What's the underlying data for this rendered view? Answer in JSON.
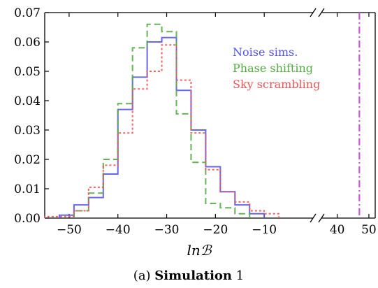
{
  "chart_data": {
    "type": "histogram",
    "xlabel": "lnℬ",
    "caption": {
      "prefix": "(a) ",
      "bold": "Simulation",
      "suffix": " 1"
    },
    "broken_axis": true,
    "x_ticks_left": [
      {
        "value": -50,
        "label": "−50"
      },
      {
        "value": -40,
        "label": "−40"
      },
      {
        "value": -30,
        "label": "−30"
      },
      {
        "value": -20,
        "label": "−20"
      },
      {
        "value": -10,
        "label": "−10"
      }
    ],
    "x_ticks_right": [
      {
        "value": 40,
        "label": "40"
      },
      {
        "value": 50,
        "label": "50"
      }
    ],
    "xlim_left": [
      -55,
      0
    ],
    "xlim_right": [
      35,
      52
    ],
    "ylim": [
      0,
      0.07
    ],
    "y_ticks": [
      {
        "value": 0.0,
        "label": "0.00"
      },
      {
        "value": 0.01,
        "label": "0.01"
      },
      {
        "value": 0.02,
        "label": "0.02"
      },
      {
        "value": 0.03,
        "label": "0.03"
      },
      {
        "value": 0.04,
        "label": "0.04"
      },
      {
        "value": 0.05,
        "label": "0.05"
      },
      {
        "value": 0.06,
        "label": "0.06"
      },
      {
        "value": 0.07,
        "label": "0.07"
      }
    ],
    "series": [
      {
        "name": "Noise sims.",
        "color": "#5555ee",
        "style": "solid",
        "edges": [
          -52,
          -49,
          -46,
          -43,
          -40,
          -37,
          -34,
          -31,
          -28,
          -25,
          -22,
          -19,
          -16,
          -13,
          -10
        ],
        "values": [
          0.001,
          0.0045,
          0.007,
          0.015,
          0.037,
          0.048,
          0.06,
          0.0615,
          0.0435,
          0.03,
          0.0175,
          0.009,
          0.0045,
          0.0015
        ]
      },
      {
        "name": "Phase shifting",
        "color": "#55aa44",
        "style": "dashed",
        "edges": [
          -49,
          -46,
          -43,
          -40,
          -37,
          -34,
          -31,
          -28,
          -25,
          -22,
          -19,
          -16,
          -13
        ],
        "values": [
          0.0025,
          0.0085,
          0.02,
          0.039,
          0.058,
          0.066,
          0.0635,
          0.0355,
          0.019,
          0.005,
          0.0035,
          0.0015
        ]
      },
      {
        "name": "Sky scrambling",
        "color": "#ee5555",
        "style": "dotted",
        "edges": [
          -55,
          -49,
          -46,
          -43,
          -40,
          -37,
          -34,
          -31,
          -28,
          -25,
          -22,
          -19,
          -16,
          -13,
          -10,
          -7
        ],
        "values": [
          0.0005,
          0.0025,
          0.0105,
          0.018,
          0.029,
          0.044,
          0.05,
          0.059,
          0.047,
          0.029,
          0.0165,
          0.009,
          0.0055,
          0.0025,
          0.0015
        ]
      }
    ],
    "vertical_line": {
      "x": 47,
      "color": "#cc55dd",
      "style": "dashdot"
    }
  }
}
